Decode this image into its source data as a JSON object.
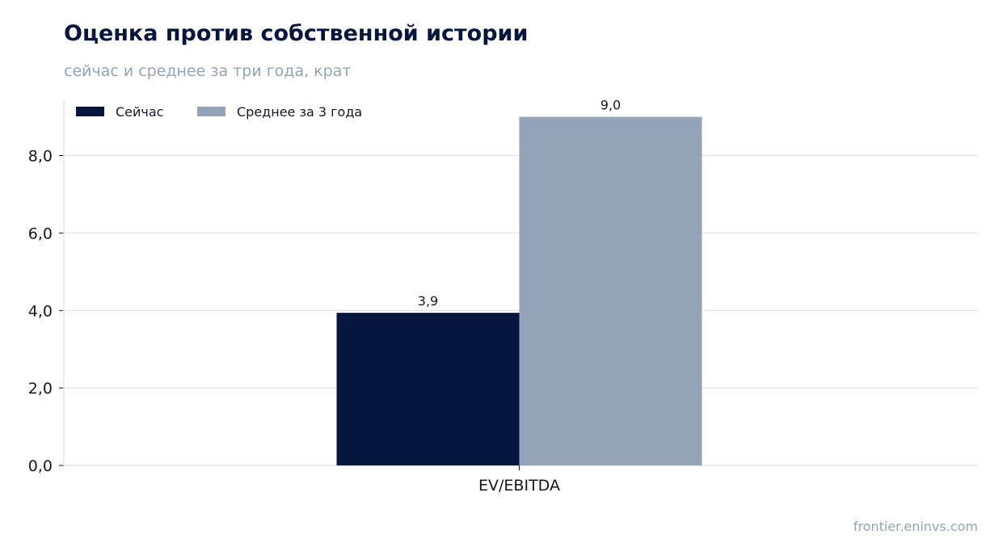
{
  "title": "Оценка против собственной истории",
  "subtitle": "сейчас и среднее за три года, крат",
  "watermark": "frontier.eninvs.com",
  "chart_data": {
    "type": "bar",
    "categories": [
      "EV/EBITDA"
    ],
    "series": [
      {
        "name": "Сейчас",
        "values": [
          3.94
        ],
        "label": "3,9",
        "color": "#06163f"
      },
      {
        "name": "Среднее за 3 года",
        "values": [
          9.0
        ],
        "label": "9,0",
        "color": "#94a3b8"
      }
    ],
    "ylim": [
      0,
      9.45
    ],
    "yticks": [
      0,
      2,
      4,
      6,
      8
    ],
    "ytick_labels": [
      "0,0",
      "2,0",
      "4,0",
      "6,0",
      "8,0"
    ],
    "grid": true,
    "legend": "top-left"
  }
}
